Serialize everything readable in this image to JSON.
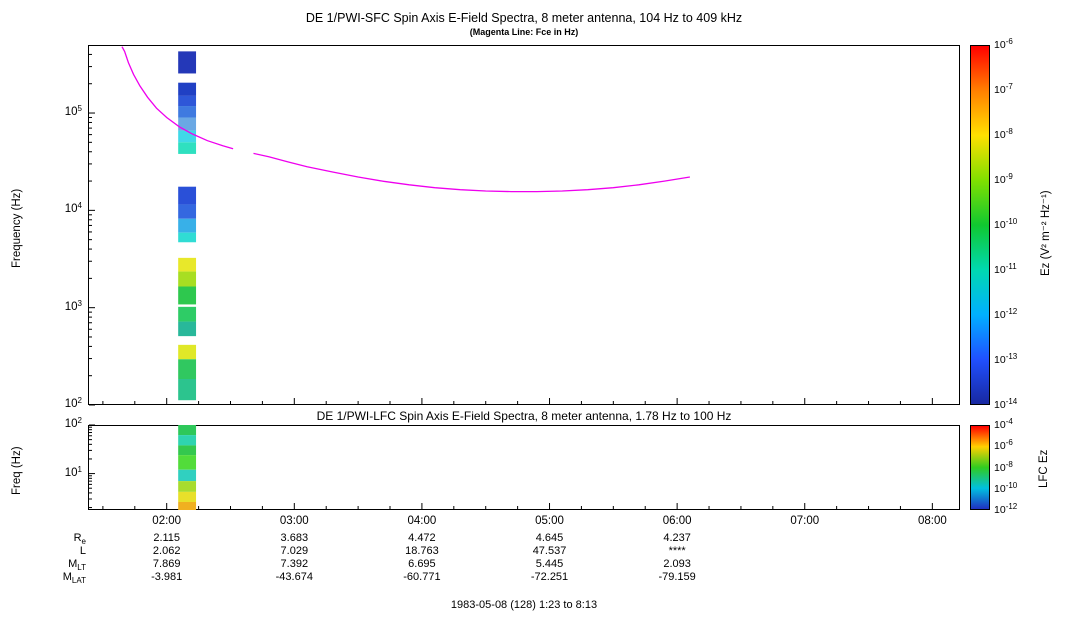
{
  "figure": {
    "footer": "1983-05-08 (128) 1:23 to 8:13"
  },
  "time_axis": {
    "start_hour": 1.3833,
    "end_hour": 8.2167,
    "ticks": [
      {
        "hour": 2,
        "label": "02:00"
      },
      {
        "hour": 3,
        "label": "03:00"
      },
      {
        "hour": 4,
        "label": "04:00"
      },
      {
        "hour": 5,
        "label": "05:00"
      },
      {
        "hour": 6,
        "label": "06:00"
      },
      {
        "hour": 7,
        "label": "07:00"
      },
      {
        "hour": 8,
        "label": "08:00"
      }
    ]
  },
  "chart_data": [
    {
      "type": "heatmap",
      "title": "DE 1/PWI-SFC  Spin Axis E-Field Spectra, 8 meter antenna, 104 Hz to 409 kHz",
      "subtitle": "(Magenta Line: Fce in Hz)",
      "ylabel": "Frequency (Hz)",
      "yscale": "log",
      "ylim": [
        100,
        500000
      ],
      "xlim_hours": [
        1.3833,
        8.2167
      ],
      "grid": false,
      "y_ticks": [
        {
          "value": 100000,
          "base": "10",
          "exp": "5"
        },
        {
          "value": 10000,
          "base": "10",
          "exp": "4"
        },
        {
          "value": 1000,
          "base": "10",
          "exp": "3"
        },
        {
          "value": 100,
          "base": "10",
          "exp": "2"
        }
      ],
      "colorbar": {
        "label": "Ez (V² m⁻² Hz⁻¹)",
        "ticks": [
          {
            "base": "10",
            "exp": "-6"
          },
          {
            "base": "10",
            "exp": "-7"
          },
          {
            "base": "10",
            "exp": "-8"
          },
          {
            "base": "10",
            "exp": "-9"
          },
          {
            "base": "10",
            "exp": "-10"
          },
          {
            "base": "10",
            "exp": "-11"
          },
          {
            "base": "10",
            "exp": "-12"
          },
          {
            "base": "10",
            "exp": "-13"
          },
          {
            "base": "10",
            "exp": "-14"
          }
        ],
        "gradient": [
          "#ff0000",
          "#ff8000",
          "#ffe000",
          "#80e000",
          "#10c830",
          "#00d8b0",
          "#00b0ff",
          "#2050ff",
          "#1828a0"
        ]
      },
      "fce_line": {
        "name": "Fce (electron cyclotron frequency)",
        "color": "#ee00ee",
        "segments": [
          [
            [
              1.65,
              480000
            ],
            [
              1.67,
              430000
            ],
            [
              1.7,
              330000
            ],
            [
              1.74,
              250000
            ],
            [
              1.79,
              190000
            ],
            [
              1.85,
              145000
            ],
            [
              1.92,
              112000
            ],
            [
              2.0,
              90000
            ],
            [
              2.1,
              72000
            ],
            [
              2.2,
              61000
            ],
            [
              2.32,
              52000
            ],
            [
              2.44,
              46000
            ],
            [
              2.52,
              43000
            ]
          ],
          [
            [
              2.68,
              38500
            ],
            [
              2.8,
              35500
            ],
            [
              2.95,
              31500
            ],
            [
              3.1,
              28000
            ],
            [
              3.3,
              24800
            ],
            [
              3.5,
              22000
            ],
            [
              3.7,
              19900
            ],
            [
              3.9,
              18300
            ],
            [
              4.1,
              17100
            ],
            [
              4.3,
              16300
            ],
            [
              4.5,
              15800
            ],
            [
              4.7,
              15600
            ],
            [
              4.9,
              15600
            ],
            [
              5.1,
              15800
            ],
            [
              5.3,
              16300
            ],
            [
              5.5,
              17100
            ],
            [
              5.7,
              18300
            ],
            [
              5.9,
              20000
            ],
            [
              6.1,
              22000
            ]
          ]
        ]
      },
      "stripe": {
        "t_start": 2.09,
        "t_end": 2.23,
        "cells": [
          [
            255000,
            430000,
            "#2438b8"
          ],
          [
            150000,
            205000,
            "#2040c4"
          ],
          [
            118000,
            150000,
            "#2e57d8"
          ],
          [
            90000,
            118000,
            "#3f7ae0"
          ],
          [
            66000,
            90000,
            "#6aa8e4"
          ],
          [
            50000,
            66000,
            "#3fd9e8"
          ],
          [
            38000,
            50000,
            "#2fe0c0"
          ],
          [
            11500,
            17500,
            "#2a50d8"
          ],
          [
            8200,
            11500,
            "#3468e0"
          ],
          [
            5900,
            8200,
            "#38b0e8"
          ],
          [
            4700,
            5900,
            "#30dcd4"
          ],
          [
            2350,
            3250,
            "#e8e82a"
          ],
          [
            1650,
            2350,
            "#a8de22"
          ],
          [
            1080,
            1650,
            "#2ec84e"
          ],
          [
            720,
            1020,
            "#2ecc66"
          ],
          [
            510,
            720,
            "#28b89a"
          ],
          [
            295,
            415,
            "#e0e828"
          ],
          [
            185,
            295,
            "#30c860"
          ],
          [
            112,
            185,
            "#2cc48e"
          ]
        ]
      }
    },
    {
      "type": "heatmap",
      "title": "DE 1/PWI-LFC  Spin Axis E-Field Spectra, 8 meter antenna, 1.78 Hz to 100 Hz",
      "ylabel": "Freq (Hz)",
      "yscale": "log",
      "ylim": [
        1.78,
        100
      ],
      "xlim_hours": [
        1.3833,
        8.2167
      ],
      "grid": false,
      "y_ticks": [
        {
          "value": 100,
          "base": "10",
          "exp": "2"
        },
        {
          "value": 10,
          "base": "10",
          "exp": "1"
        }
      ],
      "colorbar": {
        "label": "LFC Ez",
        "ticks": [
          {
            "base": "10",
            "exp": "-4"
          },
          {
            "base": "10",
            "exp": "-6"
          },
          {
            "base": "10",
            "exp": "-8"
          },
          {
            "base": "10",
            "exp": "-10"
          },
          {
            "base": "10",
            "exp": "-12"
          }
        ],
        "gradient": [
          "#ff0000",
          "#ffd000",
          "#30cc20",
          "#00c0e0",
          "#2030c0"
        ]
      },
      "stripe": {
        "t_start": 2.09,
        "t_end": 2.23,
        "cells": [
          [
            62,
            100,
            "#2ec85a"
          ],
          [
            38,
            62,
            "#2fd4b0"
          ],
          [
            24,
            38,
            "#34c84e"
          ],
          [
            12,
            24,
            "#52dc3a"
          ],
          [
            7,
            12,
            "#30d0c0"
          ],
          [
            4.2,
            7,
            "#a8dc2e"
          ],
          [
            2.6,
            4.2,
            "#e8e02a"
          ],
          [
            1.78,
            2.6,
            "#f0b020"
          ]
        ]
      }
    }
  ],
  "ephemeris": {
    "column_hours": [
      2,
      3,
      4,
      5,
      6
    ],
    "rows": [
      {
        "label": "R",
        "sublabel": "e",
        "values": [
          "2.115",
          "3.683",
          "4.472",
          "4.645",
          "4.237"
        ]
      },
      {
        "label": "L",
        "sublabel": "",
        "values": [
          "2.062",
          "7.029",
          "18.763",
          "47.537",
          "****"
        ]
      },
      {
        "label": "M",
        "sublabel": "LT",
        "values": [
          "7.869",
          "7.392",
          "6.695",
          "5.445",
          "2.093"
        ]
      },
      {
        "label": "M",
        "sublabel": "LAT",
        "values": [
          "-3.981",
          "-43.674",
          "-60.771",
          "-72.251",
          "-79.159"
        ]
      }
    ]
  }
}
